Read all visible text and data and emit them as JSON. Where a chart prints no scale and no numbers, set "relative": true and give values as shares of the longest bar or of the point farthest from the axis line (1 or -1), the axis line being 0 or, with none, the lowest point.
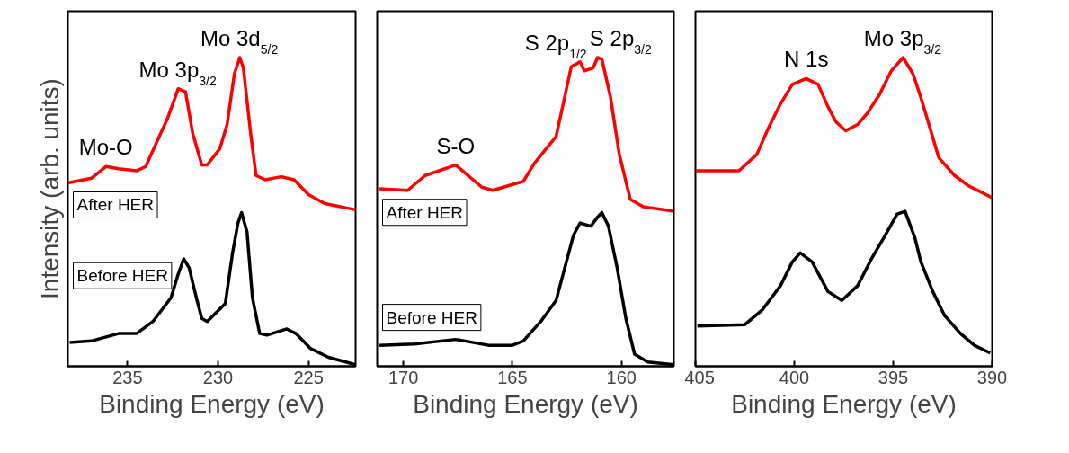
{
  "chart_data": [
    {
      "type": "line",
      "relative": true,
      "xlim": [
        238.3,
        222.4
      ],
      "xticks": [
        235,
        230,
        225
      ],
      "xlabel": "Binding Energy (eV)",
      "ylabel": "Intensity (arb. units)",
      "grid": false,
      "series": [
        {
          "name": "After HER",
          "color": "#ff0000",
          "x": [
            238.3,
            237.0,
            236.2,
            235.5,
            234.5,
            234.0,
            233.4,
            232.8,
            232.2,
            231.8,
            231.4,
            230.9,
            230.6,
            229.9,
            229.5,
            229.1,
            228.8,
            228.6,
            228.2,
            227.9,
            227.4,
            226.5,
            225.8,
            225.0,
            224.1,
            222.4
          ],
          "values": [
            0.594,
            0.609,
            0.647,
            0.64,
            0.633,
            0.647,
            0.725,
            0.802,
            0.899,
            0.889,
            0.754,
            0.652,
            0.652,
            0.705,
            0.783,
            0.947,
            1.0,
            0.966,
            0.754,
            0.618,
            0.604,
            0.614,
            0.604,
            0.556,
            0.527,
            0.507
          ]
        },
        {
          "name": "Before HER",
          "color": "#000000",
          "x": [
            238.2,
            237.0,
            235.5,
            234.5,
            233.6,
            232.6,
            232.2,
            231.9,
            231.6,
            231.2,
            230.9,
            230.6,
            229.6,
            229.2,
            228.9,
            228.7,
            228.4,
            228.1,
            227.7,
            227.3,
            226.2,
            225.7,
            224.9,
            223.9,
            222.4
          ],
          "values": [
            0.077,
            0.082,
            0.106,
            0.106,
            0.145,
            0.222,
            0.299,
            0.348,
            0.319,
            0.222,
            0.155,
            0.145,
            0.203,
            0.367,
            0.464,
            0.498,
            0.435,
            0.222,
            0.106,
            0.101,
            0.121,
            0.106,
            0.058,
            0.029,
            0.005
          ]
        }
      ],
      "annotations": [
        {
          "text": "Mo-O",
          "x": 236.2,
          "y": 0.647
        },
        {
          "text": "Mo 3p$_{3/2}$",
          "x": 232.2,
          "y": 0.899
        },
        {
          "text": "Mo 3d$_{5/2}$",
          "x": 228.8,
          "y": 1.0
        }
      ]
    },
    {
      "type": "line",
      "relative": true,
      "xlim": [
        171.2,
        157.6
      ],
      "xticks": [
        170,
        165,
        160
      ],
      "xlabel": "Binding Energy (eV)",
      "grid": false,
      "series": [
        {
          "name": "After HER",
          "color": "#ff0000",
          "x": [
            171.1,
            169.8,
            169.0,
            167.6,
            167.2,
            166.4,
            165.9,
            164.5,
            164.0,
            163.0,
            162.3,
            161.9,
            161.7,
            161.3,
            161.1,
            160.9,
            160.5,
            160.1,
            159.6,
            159.0,
            157.6
          ],
          "values": [
            0.575,
            0.57,
            0.618,
            0.652,
            0.628,
            0.58,
            0.57,
            0.599,
            0.657,
            0.744,
            0.971,
            0.986,
            0.957,
            0.966,
            1.0,
            0.995,
            0.87,
            0.686,
            0.541,
            0.517,
            0.502
          ]
        },
        {
          "name": "Before HER",
          "color": "#000000",
          "x": [
            171.1,
            169.5,
            167.6,
            166.1,
            165.0,
            164.5,
            163.7,
            163.0,
            162.2,
            161.9,
            161.4,
            161.1,
            160.9,
            160.6,
            160.2,
            159.8,
            159.4,
            158.8,
            157.6
          ],
          "values": [
            0.068,
            0.072,
            0.087,
            0.068,
            0.068,
            0.082,
            0.145,
            0.213,
            0.425,
            0.464,
            0.454,
            0.483,
            0.498,
            0.454,
            0.319,
            0.155,
            0.039,
            0.014,
            0.005
          ]
        }
      ],
      "annotations": [
        {
          "text": "S-O",
          "x": 167.6,
          "y": 0.652
        },
        {
          "text": "S 2p$_{1/2}$",
          "x": 161.9,
          "y": 0.986
        },
        {
          "text": "S 2p$_{3/2}$",
          "x": 161.1,
          "y": 1.0
        }
      ]
    },
    {
      "type": "line",
      "relative": true,
      "xlim": [
        405,
        390
      ],
      "xticks": [
        405,
        400,
        395,
        390
      ],
      "xlabel": "Binding Energy (eV)",
      "grid": false,
      "series": [
        {
          "color": "#ff0000",
          "x": [
            405.0,
            402.8,
            401.9,
            401.3,
            400.7,
            400.1,
            399.4,
            398.8,
            398.3,
            397.9,
            397.4,
            396.8,
            396.3,
            395.7,
            395.1,
            394.5,
            394.0,
            393.6,
            393.1,
            392.7,
            391.9,
            391.2,
            390.0
          ],
          "values": [
            0.633,
            0.633,
            0.686,
            0.773,
            0.85,
            0.913,
            0.932,
            0.913,
            0.841,
            0.792,
            0.763,
            0.783,
            0.821,
            0.879,
            0.957,
            1.0,
            0.947,
            0.87,
            0.763,
            0.676,
            0.618,
            0.585,
            0.546
          ]
        },
        {
          "color": "#000000",
          "x": [
            404.9,
            402.5,
            401.6,
            400.7,
            400.1,
            399.7,
            399.1,
            398.3,
            397.6,
            396.8,
            396.1,
            395.4,
            394.8,
            394.4,
            393.9,
            393.6,
            393.0,
            392.4,
            391.6,
            390.9,
            390.1
          ],
          "values": [
            0.13,
            0.135,
            0.184,
            0.261,
            0.338,
            0.367,
            0.338,
            0.242,
            0.213,
            0.261,
            0.348,
            0.425,
            0.493,
            0.502,
            0.415,
            0.338,
            0.242,
            0.164,
            0.106,
            0.068,
            0.043
          ]
        }
      ],
      "annotations": [
        {
          "text": "N 1s",
          "x": 399.4,
          "y": 0.932
        },
        {
          "text": "Mo 3p$_{3/2}$",
          "x": 394.5,
          "y": 1.0
        }
      ]
    }
  ]
}
